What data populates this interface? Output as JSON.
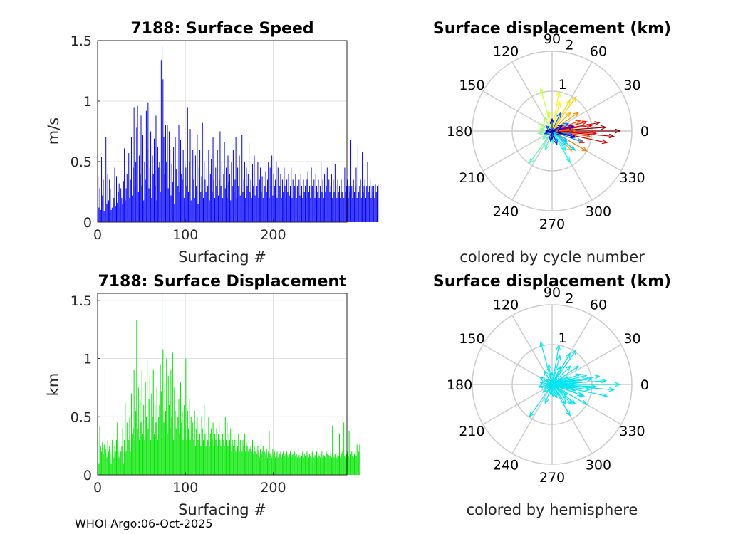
{
  "footer": "WHOI Argo:06-Oct-2025",
  "chart_data": [
    {
      "type": "bar",
      "id": "speed",
      "title": "7188: Surface Speed",
      "xlabel": "Surfacing #",
      "ylabel": "m/s",
      "xlim": [
        0,
        284
      ],
      "ylim": [
        0,
        1.5
      ],
      "xticks": [
        0,
        100,
        200
      ],
      "yticks": [
        0,
        0.5,
        1,
        1.5
      ],
      "ytick_labels": [
        "0",
        "0.5",
        "1",
        "1.5"
      ],
      "bar_color": "#0000ff",
      "grid": true,
      "values": [
        0.38,
        0.12,
        0.28,
        0.1,
        0.54,
        0.22,
        0.35,
        0.09,
        0.3,
        0.7,
        0.15,
        0.4,
        0.18,
        0.35,
        0.27,
        0.1,
        0.12,
        0.3,
        0.2,
        0.45,
        0.13,
        0.38,
        0.16,
        0.25,
        0.32,
        0.12,
        0.28,
        0.2,
        0.15,
        0.34,
        0.61,
        0.18,
        0.28,
        0.4,
        0.16,
        0.57,
        0.2,
        0.35,
        0.7,
        0.22,
        0.45,
        0.95,
        0.3,
        0.5,
        0.78,
        0.96,
        0.25,
        0.55,
        0.4,
        0.88,
        0.3,
        0.72,
        0.18,
        0.5,
        0.35,
        0.92,
        0.6,
        0.99,
        0.28,
        0.45,
        0.75,
        0.2,
        0.55,
        0.4,
        0.69,
        0.3,
        0.88,
        0.18,
        0.62,
        0.45,
        0.5,
        0.25,
        1.34,
        1.45,
        1.18,
        0.7,
        0.4,
        0.8,
        0.5,
        0.8,
        0.28,
        0.75,
        0.6,
        0.22,
        0.48,
        0.33,
        0.62,
        0.15,
        0.7,
        0.44,
        0.55,
        0.3,
        0.8,
        0.25,
        0.68,
        0.4,
        0.35,
        0.6,
        0.2,
        0.5,
        0.45,
        0.3,
        0.95,
        0.25,
        0.5,
        0.77,
        0.18,
        0.4,
        0.6,
        0.35,
        0.2,
        0.55,
        0.3,
        0.72,
        0.15,
        0.45,
        0.6,
        0.25,
        0.38,
        0.82,
        0.2,
        0.5,
        0.35,
        0.25,
        0.45,
        0.3,
        0.6,
        0.18,
        0.4,
        0.52,
        0.25,
        0.7,
        0.35,
        0.2,
        0.45,
        0.3,
        0.6,
        0.22,
        0.35,
        0.75,
        0.3,
        0.5,
        0.2,
        0.4,
        0.66,
        0.28,
        0.45,
        0.2,
        0.55,
        0.33,
        0.4,
        0.18,
        0.5,
        0.3,
        0.6,
        0.25,
        0.35,
        0.7,
        0.2,
        0.45,
        0.3,
        0.55,
        0.22,
        0.4,
        0.72,
        0.25,
        0.35,
        0.5,
        0.2,
        0.45,
        0.3,
        0.4,
        0.66,
        0.25,
        0.35,
        0.2,
        0.48,
        0.3,
        0.55,
        0.22,
        0.4,
        0.3,
        0.5,
        0.2,
        0.35,
        0.45,
        0.25,
        0.38,
        0.2,
        0.55,
        0.3,
        0.42,
        0.25,
        0.35,
        0.5,
        0.2,
        0.45,
        0.3,
        0.55,
        0.22,
        0.4,
        0.3,
        0.35,
        0.5,
        0.2,
        0.45,
        0.25,
        0.3,
        0.4,
        0.2,
        0.35,
        0.25,
        0.45,
        0.3,
        0.2,
        0.35,
        0.25,
        0.4,
        0.22,
        0.3,
        0.45,
        0.2,
        0.35,
        0.25,
        0.3,
        0.4,
        0.2,
        0.3,
        0.25,
        0.35,
        0.22,
        0.4,
        0.3,
        0.2,
        0.35,
        0.25,
        0.3,
        0.2,
        0.35,
        0.42,
        0.25,
        0.3,
        0.2,
        0.45,
        0.3,
        0.25,
        0.35,
        0.2,
        0.4,
        0.3,
        0.25,
        0.35,
        0.2,
        0.3,
        0.5,
        0.25,
        0.35,
        0.2,
        0.4,
        0.25,
        0.3,
        0.45,
        0.2,
        0.35,
        0.25,
        0.3,
        0.4,
        0.2,
        0.35,
        0.25,
        0.48,
        0.3,
        0.2,
        0.35,
        0.25,
        0.3,
        0.2,
        0.35,
        0.25,
        0.3,
        0.2,
        0.45,
        0.25,
        0.3,
        0.35,
        0.2,
        0.3,
        0.25,
        0.68,
        0.3,
        0.2,
        0.35,
        0.25,
        0.3,
        0.45,
        0.2,
        0.62,
        0.25,
        0.3,
        0.35,
        0.2,
        0.58,
        0.25,
        0.3,
        0.35,
        0.2,
        0.3,
        0.5,
        0.25,
        0.3,
        0.35,
        0.2,
        0.3,
        0.25,
        0.3,
        0.2,
        0.31,
        0.25,
        0.3,
        0.31
      ]
    },
    {
      "type": "bar",
      "id": "displacement",
      "title": "7188: Surface Displacement",
      "xlabel": "Surfacing #",
      "ylabel": "km",
      "xlim": [
        0,
        284
      ],
      "ylim": [
        0,
        1.56
      ],
      "xticks": [
        0,
        100,
        200
      ],
      "yticks": [
        0,
        0.5,
        1,
        1.5
      ],
      "ytick_labels": [
        "0",
        "0.5",
        "1",
        "1.5"
      ],
      "bar_color": "#00e600",
      "grid": true,
      "values": [
        0.3,
        0.1,
        0.42,
        0.25,
        0.2,
        0.28,
        0.18,
        0.26,
        0.94,
        0.22,
        0.15,
        0.3,
        0.2,
        0.25,
        0.18,
        0.1,
        0.3,
        0.52,
        0.15,
        0.25,
        0.2,
        0.3,
        0.45,
        0.2,
        0.15,
        0.33,
        0.2,
        0.25,
        0.4,
        0.1,
        0.3,
        0.62,
        0.2,
        0.45,
        0.25,
        0.3,
        0.5,
        0.2,
        0.7,
        0.35,
        0.4,
        0.9,
        0.3,
        0.55,
        1.33,
        0.4,
        0.75,
        0.3,
        0.65,
        0.45,
        0.9,
        0.35,
        0.6,
        0.3,
        0.8,
        0.5,
        0.99,
        0.4,
        0.65,
        0.85,
        0.3,
        0.7,
        0.5,
        0.9,
        0.35,
        0.6,
        0.45,
        0.75,
        0.3,
        0.5,
        0.6,
        0.95,
        0.72,
        1.56,
        1.08,
        0.45,
        0.8,
        0.55,
        1.0,
        0.35,
        0.85,
        0.6,
        0.4,
        0.9,
        0.5,
        1.05,
        0.3,
        0.75,
        0.55,
        0.4,
        0.95,
        0.5,
        0.65,
        0.35,
        0.8,
        0.45,
        0.55,
        0.3,
        0.6,
        0.4,
        1.0,
        0.3,
        0.55,
        0.4,
        0.65,
        0.3,
        0.5,
        0.35,
        0.45,
        0.3,
        0.55,
        0.25,
        0.4,
        0.5,
        0.3,
        0.45,
        0.35,
        0.25,
        0.5,
        0.4,
        0.3,
        0.6,
        0.35,
        0.25,
        0.45,
        0.3,
        0.5,
        0.25,
        0.35,
        0.4,
        0.3,
        0.45,
        0.25,
        0.35,
        0.3,
        0.4,
        0.25,
        0.35,
        0.45,
        0.3,
        0.25,
        0.4,
        0.35,
        0.3,
        0.25,
        0.5,
        0.3,
        0.45,
        0.25,
        0.35,
        0.3,
        0.4,
        0.2,
        0.3,
        0.25,
        0.35,
        0.3,
        0.2,
        0.3,
        0.25,
        0.35,
        0.2,
        0.3,
        0.25,
        0.2,
        0.3,
        0.25,
        0.35,
        0.2,
        0.28,
        0.25,
        0.2,
        0.3,
        0.22,
        0.25,
        0.2,
        0.3,
        0.18,
        0.25,
        0.2,
        0.22,
        0.18,
        0.25,
        0.2,
        0.15,
        0.22,
        0.18,
        0.2,
        0.25,
        0.15,
        0.2,
        0.18,
        0.22,
        0.15,
        0.2,
        0.38,
        0.18,
        0.2,
        0.15,
        0.22,
        0.18,
        0.2,
        0.15,
        0.18,
        0.2,
        0.15,
        0.22,
        0.18,
        0.2,
        0.15,
        0.18,
        0.2,
        0.16,
        0.18,
        0.15,
        0.2,
        0.17,
        0.15,
        0.18,
        0.2,
        0.15,
        0.17,
        0.18,
        0.15,
        0.2,
        0.16,
        0.18,
        0.15,
        0.2,
        0.17,
        0.15,
        0.18,
        0.16,
        0.2,
        0.15,
        0.18,
        0.16,
        0.15,
        0.2,
        0.17,
        0.15,
        0.18,
        0.16,
        0.15,
        0.2,
        0.18,
        0.15,
        0.17,
        0.16,
        0.2,
        0.15,
        0.18,
        0.16,
        0.15,
        0.18,
        0.2,
        0.15,
        0.17,
        0.16,
        0.15,
        0.2,
        0.18,
        0.15,
        0.17,
        0.16,
        0.2,
        0.15,
        0.42,
        0.16,
        0.15,
        0.18,
        0.2,
        0.15,
        0.17,
        0.16,
        0.35,
        0.15,
        0.18,
        0.2,
        0.15,
        0.45,
        0.16,
        0.15,
        0.18,
        0.2,
        0.16,
        0.38,
        0.15,
        0.18,
        0.2,
        0.16,
        0.15,
        0.18,
        0.2,
        0.16,
        0.26,
        0.15,
        0.2,
        0.26
      ]
    },
    {
      "type": "polar",
      "id": "polar-cycle",
      "title": "Surface displacement (km)",
      "note": "colored by cycle number",
      "rmax": 2,
      "rticks": [
        1,
        2
      ],
      "angle_ticks": [
        0,
        30,
        60,
        90,
        120,
        150,
        180,
        210,
        240,
        270,
        300,
        330
      ],
      "color_mode": "cycle",
      "vectors": [
        {
          "angle": 0,
          "r": 1.7
        },
        {
          "angle": 4,
          "r": 1.35
        },
        {
          "angle": -5,
          "r": 1.55
        },
        {
          "angle": 10,
          "r": 1.2
        },
        {
          "angle": -12,
          "r": 1.4
        },
        {
          "angle": 8,
          "r": 1.0
        },
        {
          "angle": -3,
          "r": 1.1
        },
        {
          "angle": 15,
          "r": 0.9
        },
        {
          "angle": -20,
          "r": 0.85
        },
        {
          "angle": 20,
          "r": 0.75
        },
        {
          "angle": -8,
          "r": 0.95
        },
        {
          "angle": 2,
          "r": 0.6
        },
        {
          "angle": -30,
          "r": 1.0
        },
        {
          "angle": 35,
          "r": 0.8
        },
        {
          "angle": -45,
          "r": 0.7
        },
        {
          "angle": 45,
          "r": 0.65
        },
        {
          "angle": 55,
          "r": 1.05
        },
        {
          "angle": 60,
          "r": 0.9
        },
        {
          "angle": 75,
          "r": 0.75
        },
        {
          "angle": 80,
          "r": 1.0
        },
        {
          "angle": 100,
          "r": 0.5
        },
        {
          "angle": 105,
          "r": 1.1
        },
        {
          "angle": 120,
          "r": 0.4
        },
        {
          "angle": 150,
          "r": 0.35
        },
        {
          "angle": 170,
          "r": 0.3
        },
        {
          "angle": 190,
          "r": 0.35
        },
        {
          "angle": 220,
          "r": 0.3
        },
        {
          "angle": 235,
          "r": 0.98
        },
        {
          "angle": 250,
          "r": 0.5
        },
        {
          "angle": 275,
          "r": 0.3
        },
        {
          "angle": 300,
          "r": 0.9
        },
        {
          "angle": 305,
          "r": 0.6
        },
        {
          "angle": 315,
          "r": 0.5
        },
        {
          "angle": 320,
          "r": 0.75
        },
        {
          "angle": 325,
          "r": 0.45
        },
        {
          "angle": 340,
          "r": 0.8
        },
        {
          "angle": 350,
          "r": 0.5
        },
        {
          "angle": 25,
          "r": 0.45
        },
        {
          "angle": 65,
          "r": 0.5
        },
        {
          "angle": 140,
          "r": 0.2
        },
        {
          "angle": 200,
          "r": 0.2
        },
        {
          "angle": 260,
          "r": 0.25
        },
        {
          "angle": 290,
          "r": 0.35
        },
        {
          "angle": 12,
          "r": 0.55
        },
        {
          "angle": -15,
          "r": 0.6
        },
        {
          "angle": 30,
          "r": 0.3
        },
        {
          "angle": 90,
          "r": 0.3
        },
        {
          "angle": 180,
          "r": 0.15
        },
        {
          "angle": 270,
          "r": 0.2
        },
        {
          "angle": 345,
          "r": 0.25
        }
      ]
    },
    {
      "type": "polar",
      "id": "polar-hemisphere",
      "title": "Surface displacement (km)",
      "note": "colored by hemisphere",
      "rmax": 2,
      "rticks": [
        1,
        2
      ],
      "angle_ticks": [
        0,
        30,
        60,
        90,
        120,
        150,
        180,
        210,
        240,
        270,
        300,
        330
      ],
      "color_mode": "hemisphere",
      "color": "#00e5ee",
      "vectors": [
        {
          "angle": 0,
          "r": 1.7
        },
        {
          "angle": 4,
          "r": 1.35
        },
        {
          "angle": -5,
          "r": 1.55
        },
        {
          "angle": 10,
          "r": 1.2
        },
        {
          "angle": -12,
          "r": 1.4
        },
        {
          "angle": 8,
          "r": 1.0
        },
        {
          "angle": -3,
          "r": 1.1
        },
        {
          "angle": 15,
          "r": 0.9
        },
        {
          "angle": -20,
          "r": 0.85
        },
        {
          "angle": 20,
          "r": 0.75
        },
        {
          "angle": -8,
          "r": 0.95
        },
        {
          "angle": 2,
          "r": 0.6
        },
        {
          "angle": -30,
          "r": 1.0
        },
        {
          "angle": 35,
          "r": 0.8
        },
        {
          "angle": -45,
          "r": 0.7
        },
        {
          "angle": 45,
          "r": 0.65
        },
        {
          "angle": 55,
          "r": 1.05
        },
        {
          "angle": 60,
          "r": 0.9
        },
        {
          "angle": 75,
          "r": 0.75
        },
        {
          "angle": 80,
          "r": 1.0
        },
        {
          "angle": 100,
          "r": 0.5
        },
        {
          "angle": 105,
          "r": 1.1
        },
        {
          "angle": 120,
          "r": 0.4
        },
        {
          "angle": 150,
          "r": 0.35
        },
        {
          "angle": 170,
          "r": 0.3
        },
        {
          "angle": 190,
          "r": 0.35
        },
        {
          "angle": 220,
          "r": 0.3
        },
        {
          "angle": 235,
          "r": 0.98
        },
        {
          "angle": 250,
          "r": 0.5
        },
        {
          "angle": 275,
          "r": 0.3
        },
        {
          "angle": 300,
          "r": 0.9
        },
        {
          "angle": 305,
          "r": 0.6
        },
        {
          "angle": 315,
          "r": 0.5
        },
        {
          "angle": 320,
          "r": 0.75
        },
        {
          "angle": 325,
          "r": 0.45
        },
        {
          "angle": 340,
          "r": 0.8
        },
        {
          "angle": 350,
          "r": 0.5
        },
        {
          "angle": 25,
          "r": 0.45
        },
        {
          "angle": 65,
          "r": 0.5
        },
        {
          "angle": 140,
          "r": 0.2
        },
        {
          "angle": 200,
          "r": 0.2
        },
        {
          "angle": 260,
          "r": 0.25
        },
        {
          "angle": 290,
          "r": 0.35
        },
        {
          "angle": 12,
          "r": 0.55
        },
        {
          "angle": -15,
          "r": 0.6
        },
        {
          "angle": 30,
          "r": 0.3
        },
        {
          "angle": 90,
          "r": 0.3
        },
        {
          "angle": 180,
          "r": 0.15
        },
        {
          "angle": 270,
          "r": 0.2
        },
        {
          "angle": 345,
          "r": 0.25
        }
      ]
    }
  ]
}
